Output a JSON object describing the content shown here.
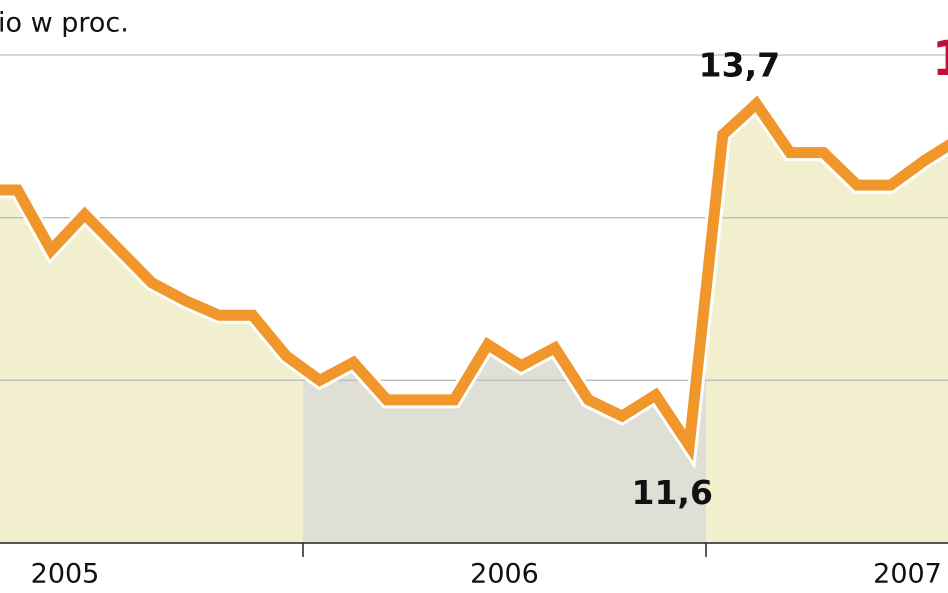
{
  "chart_data": {
    "type": "line",
    "title": "io w proc.",
    "annotation": "1",
    "annotation_color": "#c0103a",
    "categories": [
      null,
      null,
      null,
      null,
      null,
      null,
      null,
      null,
      null,
      null,
      null,
      null,
      null,
      null,
      null,
      null,
      null,
      null,
      null,
      null,
      null,
      null,
      null,
      null,
      null,
      null,
      null,
      null,
      null,
      null,
      null,
      null
    ],
    "years": [
      "2005",
      "2006",
      "2007"
    ],
    "year_fills": [
      "#f2efcf",
      "#dfdfd6",
      "#f2efcf"
    ],
    "series": [
      {
        "color": "#f0962a",
        "values": [
          null,
          null,
          13.17,
          13.17,
          12.8,
          13.02,
          12.81,
          12.6,
          12.49,
          12.4,
          12.4,
          12.15,
          12.0,
          12.11,
          11.88,
          11.88,
          11.88,
          12.22,
          12.09,
          12.2,
          11.88,
          11.78,
          11.91,
          11.6,
          13.51,
          13.7,
          13.4,
          13.4,
          13.2,
          13.2,
          13.35,
          13.48
        ],
        "value_labels": [
          null,
          null,
          null,
          null,
          null,
          null,
          null,
          null,
          null,
          null,
          null,
          null,
          null,
          null,
          null,
          null,
          null,
          null,
          null,
          null,
          null,
          null,
          null,
          "11,6",
          null,
          "13,7",
          null,
          null,
          null,
          null,
          null,
          null
        ]
      }
    ],
    "ylim": [
      11,
      14
    ],
    "yticks": [
      12,
      13,
      14
    ],
    "grid": true
  }
}
